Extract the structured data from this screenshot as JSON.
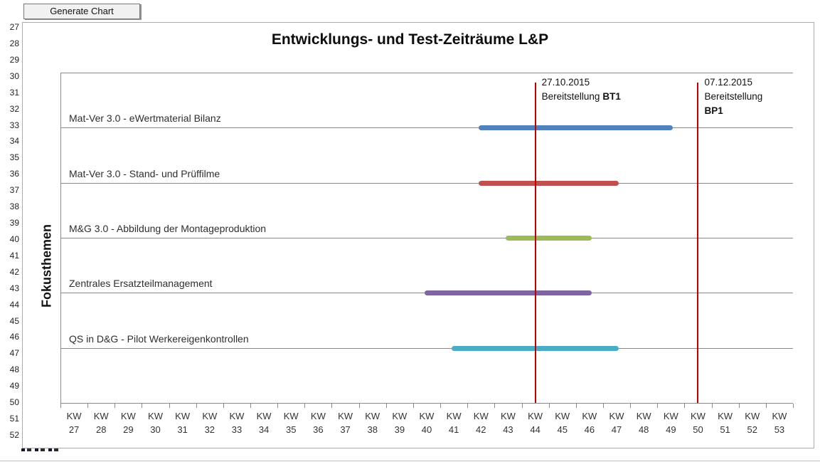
{
  "toolbar": {
    "generate_button_label": "Generate Chart"
  },
  "sheet": {
    "row_numbers": [
      "27",
      "28",
      "29",
      "30",
      "31",
      "32",
      "33",
      "34",
      "35",
      "36",
      "37",
      "38",
      "39",
      "40",
      "41",
      "42",
      "43",
      "44",
      "45",
      "46",
      "47",
      "48",
      "49",
      "50",
      "51",
      "52"
    ]
  },
  "chart_data": {
    "type": "bar",
    "subtype": "gantt-timeline",
    "title": "Entwicklungs- und Test-Zeiträume L&P",
    "y_axis_title": "Fokusthemen",
    "grid": "horizontal",
    "legend": "none",
    "x_axis": {
      "tick_prefix": "KW",
      "weeks": [
        27,
        28,
        29,
        30,
        31,
        32,
        33,
        34,
        35,
        36,
        37,
        38,
        39,
        40,
        41,
        42,
        43,
        44,
        45,
        46,
        47,
        48,
        49,
        50,
        51,
        52,
        53
      ]
    },
    "xlim_weeks": [
      27,
      53
    ],
    "series": [
      {
        "name": "Mat-Ver 3.0 - eWertmaterial Bilanz",
        "start_kw": 42,
        "end_kw": 49,
        "color": "#4F81BD"
      },
      {
        "name": "Mat-Ver 3.0 - Stand- und Prüffilme",
        "start_kw": 42,
        "end_kw": 47,
        "color": "#C0504D"
      },
      {
        "name": "M&G 3.0 - Abbildung der Montageproduktion",
        "start_kw": 43,
        "end_kw": 46,
        "color": "#9BBB59"
      },
      {
        "name": "Zentrales Ersatzteilmanagement",
        "start_kw": 40,
        "end_kw": 46,
        "color": "#8064A2"
      },
      {
        "name": "QS in D&G - Pilot Werkereigenkontrollen",
        "start_kw": 41,
        "end_kw": 47,
        "color": "#4BACC6"
      }
    ],
    "milestones": [
      {
        "date": "27.10.2015",
        "label": "Bereitstellung",
        "code": "BT1",
        "kw": 44,
        "stacked": false,
        "color": "#C00000"
      },
      {
        "date": "07.12.2015",
        "label": "Bereitstellung",
        "code": "BP1",
        "kw": 50,
        "stacked": true,
        "color": "#C00000"
      }
    ]
  }
}
